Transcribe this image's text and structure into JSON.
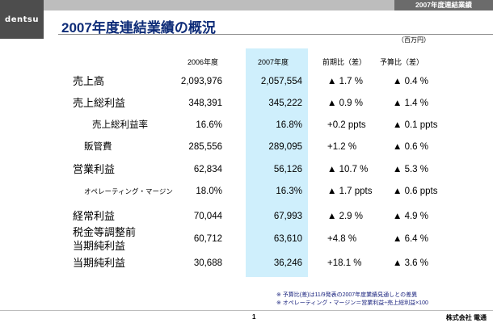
{
  "logo": "dentsu",
  "header_label": "2007年度連結業績",
  "title": "2007年度連結業績の概況",
  "unit": "（百万円）",
  "columns": {
    "y2006": "2006年度",
    "y2007": "2007年度",
    "yoy": "前期比（差）",
    "vs_forecast": "予算比（差）"
  },
  "rows": [
    {
      "label": "売上高",
      "y2006": "2,093,976",
      "y2007": "2,057,554",
      "yoy": "▲ 1.7 %",
      "vs_forecast": "▲ 0.4 %"
    },
    {
      "label": "売上総利益",
      "y2006": "348,391",
      "y2007": "345,222",
      "yoy": "▲ 0.9 %",
      "vs_forecast": "▲ 1.4 %"
    },
    {
      "label": "売上総利益率",
      "y2006": "16.6%",
      "y2007": "16.8%",
      "yoy": "+0.2 ppts",
      "vs_forecast": "▲ 0.1 ppts"
    },
    {
      "label": "販管費",
      "y2006": "285,556",
      "y2007": "289,095",
      "yoy": "+1.2 %",
      "vs_forecast": "▲ 0.6 %"
    },
    {
      "label": "営業利益",
      "y2006": "62,834",
      "y2007": "56,126",
      "yoy": "▲ 10.7 %",
      "vs_forecast": "▲ 5.3 %"
    },
    {
      "label": "オペレーティング・マージン",
      "y2006": "18.0%",
      "y2007": "16.3%",
      "yoy": "▲ 1.7 ppts",
      "vs_forecast": "▲ 0.6 ppts"
    },
    {
      "label": "経常利益",
      "y2006": "70,044",
      "y2007": "67,993",
      "yoy": "▲ 2.9 %",
      "vs_forecast": "▲ 4.9 %"
    },
    {
      "label": "税金等調整前当期純利益",
      "label_line1": "税金等調整前",
      "label_line2": "当期純利益",
      "y2006": "60,712",
      "y2007": "63,610",
      "yoy": "+4.8 %",
      "vs_forecast": "▲ 6.4 %"
    },
    {
      "label": "当期純利益",
      "y2006": "30,688",
      "y2007": "36,246",
      "yoy": "+18.1 %",
      "vs_forecast": "▲ 3.6 %"
    }
  ],
  "notes": [
    "※ 予算比(差)は11/9発表の2007年度業績見通しとの差異",
    "※ オペレーティング・マージン＝営業利益÷売上総利益×100"
  ],
  "page_number": "1",
  "company": "株式会社 電通"
}
